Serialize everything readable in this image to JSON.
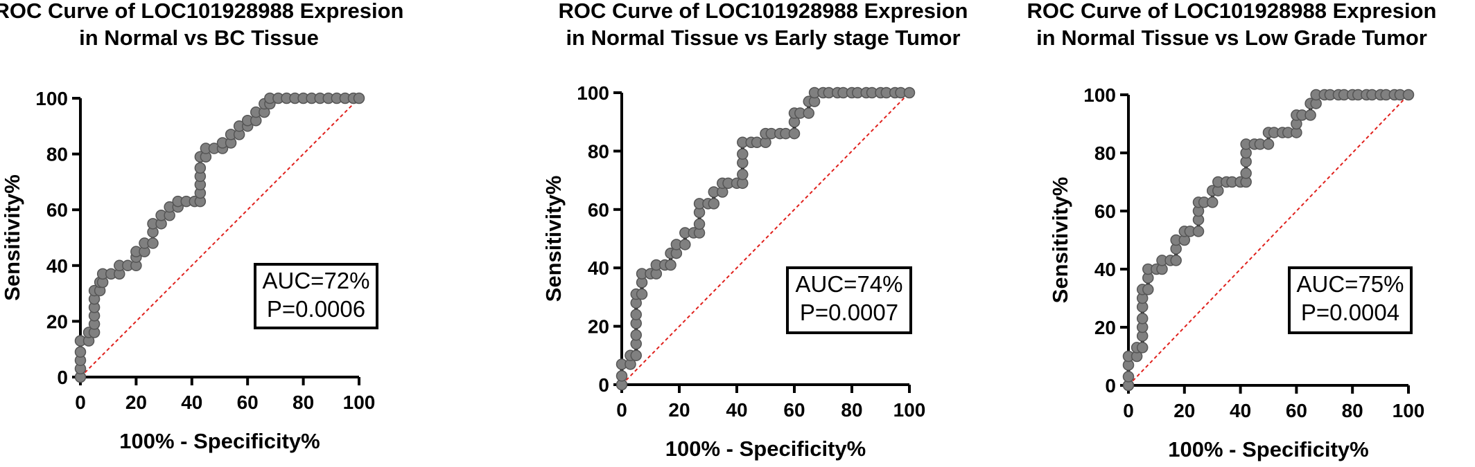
{
  "chart_data": [
    {
      "type": "line",
      "title": "ROC Curve of LOC101928988 Expresion",
      "subtitle": "in Normal vs BC Tissue",
      "xlabel": "100% - Specificity%",
      "ylabel": "Sensitivity%",
      "xlim": [
        0,
        100
      ],
      "ylim": [
        0,
        100
      ],
      "xticks": [
        "0",
        "20",
        "40",
        "60",
        "80",
        "100"
      ],
      "yticks": [
        "0",
        "20",
        "40",
        "60",
        "80",
        "100"
      ],
      "grid": false,
      "annotation": [
        "AUC=72%",
        "P=0.0006"
      ],
      "series": [
        {
          "points": [
            [
              0,
              0
            ],
            [
              0,
              3
            ],
            [
              0,
              6
            ],
            [
              0,
              9
            ],
            [
              0,
              13
            ],
            [
              3,
              13
            ],
            [
              3,
              16
            ],
            [
              5,
              16
            ],
            [
              5,
              19
            ],
            [
              5,
              22
            ],
            [
              5,
              25
            ],
            [
              5,
              28
            ],
            [
              5,
              31
            ],
            [
              7,
              31
            ],
            [
              7,
              34
            ],
            [
              8,
              34
            ],
            [
              8,
              37
            ],
            [
              11,
              37
            ],
            [
              14,
              37
            ],
            [
              14,
              40
            ],
            [
              17,
              40
            ],
            [
              20,
              40
            ],
            [
              20,
              43
            ],
            [
              20,
              45
            ],
            [
              23,
              45
            ],
            [
              23,
              48
            ],
            [
              26,
              48
            ],
            [
              26,
              52
            ],
            [
              26,
              55
            ],
            [
              29,
              55
            ],
            [
              29,
              58
            ],
            [
              32,
              58
            ],
            [
              32,
              61
            ],
            [
              35,
              61
            ],
            [
              35,
              63
            ],
            [
              38,
              63
            ],
            [
              41,
              63
            ],
            [
              43,
              63
            ],
            [
              43,
              66
            ],
            [
              43,
              69
            ],
            [
              43,
              72
            ],
            [
              43,
              75
            ],
            [
              43,
              79
            ],
            [
              45,
              79
            ],
            [
              45,
              82
            ],
            [
              48,
              82
            ],
            [
              51,
              82
            ],
            [
              51,
              84
            ],
            [
              54,
              84
            ],
            [
              54,
              87
            ],
            [
              57,
              87
            ],
            [
              57,
              90
            ],
            [
              60,
              90
            ],
            [
              60,
              92
            ],
            [
              63,
              92
            ],
            [
              63,
              95
            ],
            [
              66,
              95
            ],
            [
              66,
              98
            ],
            [
              68,
              98
            ],
            [
              68,
              100
            ],
            [
              71,
              100
            ],
            [
              74,
              100
            ],
            [
              77,
              100
            ],
            [
              80,
              100
            ],
            [
              83,
              100
            ],
            [
              86,
              100
            ],
            [
              89,
              100
            ],
            [
              92,
              100
            ],
            [
              95,
              100
            ],
            [
              98,
              100
            ],
            [
              100,
              100
            ]
          ]
        }
      ]
    },
    {
      "type": "line",
      "title": "ROC Curve of LOC101928988 Expresion",
      "subtitle": "in Normal Tissue vs Early stage Tumor",
      "xlabel": "100% - Specificity%",
      "ylabel": "Sensitivity%",
      "xlim": [
        0,
        100
      ],
      "ylim": [
        0,
        100
      ],
      "xticks": [
        "0",
        "20",
        "40",
        "60",
        "80",
        "100"
      ],
      "yticks": [
        "0",
        "20",
        "40",
        "60",
        "80",
        "100"
      ],
      "grid": false,
      "annotation": [
        "AUC=74%",
        "P=0.0007"
      ],
      "series": [
        {
          "points": [
            [
              0,
              0
            ],
            [
              0,
              3
            ],
            [
              0,
              7
            ],
            [
              3,
              7
            ],
            [
              3,
              10
            ],
            [
              5,
              10
            ],
            [
              5,
              14
            ],
            [
              5,
              17
            ],
            [
              5,
              21
            ],
            [
              5,
              24
            ],
            [
              5,
              28
            ],
            [
              5,
              31
            ],
            [
              7,
              31
            ],
            [
              7,
              35
            ],
            [
              7,
              38
            ],
            [
              10,
              38
            ],
            [
              12,
              38
            ],
            [
              12,
              41
            ],
            [
              15,
              41
            ],
            [
              17,
              41
            ],
            [
              17,
              45
            ],
            [
              19,
              45
            ],
            [
              19,
              48
            ],
            [
              22,
              48
            ],
            [
              22,
              52
            ],
            [
              25,
              52
            ],
            [
              27,
              52
            ],
            [
              27,
              55
            ],
            [
              27,
              59
            ],
            [
              27,
              62
            ],
            [
              30,
              62
            ],
            [
              32,
              62
            ],
            [
              32,
              66
            ],
            [
              35,
              66
            ],
            [
              35,
              69
            ],
            [
              37,
              69
            ],
            [
              40,
              69
            ],
            [
              42,
              69
            ],
            [
              42,
              72
            ],
            [
              42,
              76
            ],
            [
              42,
              79
            ],
            [
              42,
              83
            ],
            [
              45,
              83
            ],
            [
              47,
              83
            ],
            [
              50,
              83
            ],
            [
              50,
              86
            ],
            [
              52,
              86
            ],
            [
              55,
              86
            ],
            [
              57,
              86
            ],
            [
              60,
              86
            ],
            [
              60,
              90
            ],
            [
              60,
              93
            ],
            [
              62,
              93
            ],
            [
              65,
              93
            ],
            [
              65,
              97
            ],
            [
              67,
              97
            ],
            [
              67,
              100
            ],
            [
              70,
              100
            ],
            [
              72,
              100
            ],
            [
              75,
              100
            ],
            [
              77,
              100
            ],
            [
              80,
              100
            ],
            [
              82,
              100
            ],
            [
              85,
              100
            ],
            [
              87,
              100
            ],
            [
              90,
              100
            ],
            [
              92,
              100
            ],
            [
              95,
              100
            ],
            [
              97,
              100
            ],
            [
              100,
              100
            ]
          ]
        }
      ]
    },
    {
      "type": "line",
      "title": "ROC Curve of LOC101928988 Expresion",
      "subtitle": "in Normal Tissue vs Low Grade Tumor",
      "xlabel": "100% - Specificity%",
      "ylabel": "Sensitivity%",
      "xlim": [
        0,
        100
      ],
      "ylim": [
        0,
        100
      ],
      "xticks": [
        "0",
        "20",
        "40",
        "60",
        "80",
        "100"
      ],
      "yticks": [
        "0",
        "20",
        "40",
        "60",
        "80",
        "100"
      ],
      "grid": false,
      "annotation": [
        "AUC=75%",
        "P=0.0004"
      ],
      "series": [
        {
          "points": [
            [
              0,
              0
            ],
            [
              0,
              3
            ],
            [
              0,
              7
            ],
            [
              0,
              10
            ],
            [
              3,
              10
            ],
            [
              3,
              13
            ],
            [
              5,
              13
            ],
            [
              5,
              17
            ],
            [
              5,
              20
            ],
            [
              5,
              23
            ],
            [
              5,
              27
            ],
            [
              5,
              30
            ],
            [
              5,
              33
            ],
            [
              7,
              33
            ],
            [
              7,
              37
            ],
            [
              7,
              40
            ],
            [
              10,
              40
            ],
            [
              12,
              40
            ],
            [
              12,
              43
            ],
            [
              15,
              43
            ],
            [
              17,
              43
            ],
            [
              17,
              47
            ],
            [
              17,
              50
            ],
            [
              20,
              50
            ],
            [
              20,
              53
            ],
            [
              22,
              53
            ],
            [
              25,
              53
            ],
            [
              25,
              57
            ],
            [
              25,
              60
            ],
            [
              25,
              63
            ],
            [
              27,
              63
            ],
            [
              30,
              63
            ],
            [
              30,
              67
            ],
            [
              32,
              67
            ],
            [
              32,
              70
            ],
            [
              35,
              70
            ],
            [
              37,
              70
            ],
            [
              40,
              70
            ],
            [
              42,
              70
            ],
            [
              42,
              73
            ],
            [
              42,
              77
            ],
            [
              42,
              80
            ],
            [
              42,
              83
            ],
            [
              45,
              83
            ],
            [
              47,
              83
            ],
            [
              50,
              83
            ],
            [
              50,
              87
            ],
            [
              52,
              87
            ],
            [
              55,
              87
            ],
            [
              57,
              87
            ],
            [
              60,
              87
            ],
            [
              60,
              90
            ],
            [
              60,
              93
            ],
            [
              62,
              93
            ],
            [
              65,
              93
            ],
            [
              65,
              97
            ],
            [
              67,
              97
            ],
            [
              67,
              100
            ],
            [
              70,
              100
            ],
            [
              72,
              100
            ],
            [
              75,
              100
            ],
            [
              77,
              100
            ],
            [
              80,
              100
            ],
            [
              82,
              100
            ],
            [
              85,
              100
            ],
            [
              87,
              100
            ],
            [
              90,
              100
            ],
            [
              92,
              100
            ],
            [
              95,
              100
            ],
            [
              97,
              100
            ],
            [
              100,
              100
            ]
          ]
        }
      ]
    }
  ]
}
